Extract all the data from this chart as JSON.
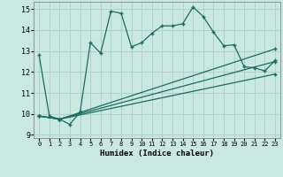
{
  "title": "",
  "xlabel": "Humidex (Indice chaleur)",
  "bg_color": "#c8e8e0",
  "grid_color": "#b0d0cc",
  "line_color": "#1a6b60",
  "xlim": [
    -0.5,
    23.5
  ],
  "ylim": [
    8.85,
    15.35
  ],
  "yticks": [
    9,
    10,
    11,
    12,
    13,
    14,
    15
  ],
  "xticks": [
    0,
    1,
    2,
    3,
    4,
    5,
    6,
    7,
    8,
    9,
    10,
    11,
    12,
    13,
    14,
    15,
    16,
    17,
    18,
    19,
    20,
    21,
    22,
    23
  ],
  "line1_x": [
    0,
    1,
    2,
    3,
    4,
    5,
    6,
    7,
    8,
    9,
    10,
    11,
    12,
    13,
    14,
    15,
    16,
    17,
    18,
    19,
    20,
    21,
    22,
    23
  ],
  "line1_y": [
    12.8,
    9.9,
    9.75,
    9.5,
    10.1,
    13.4,
    12.9,
    14.9,
    14.8,
    13.2,
    13.4,
    13.85,
    14.2,
    14.2,
    14.3,
    15.1,
    14.65,
    13.9,
    13.25,
    13.3,
    12.25,
    12.2,
    12.05,
    12.55
  ],
  "line2_x": [
    0,
    2,
    23
  ],
  "line2_y": [
    9.9,
    9.75,
    11.9
  ],
  "line3_x": [
    0,
    2,
    23
  ],
  "line3_y": [
    9.9,
    9.75,
    13.1
  ],
  "line4_x": [
    0,
    2,
    23
  ],
  "line4_y": [
    9.9,
    9.75,
    12.5
  ]
}
